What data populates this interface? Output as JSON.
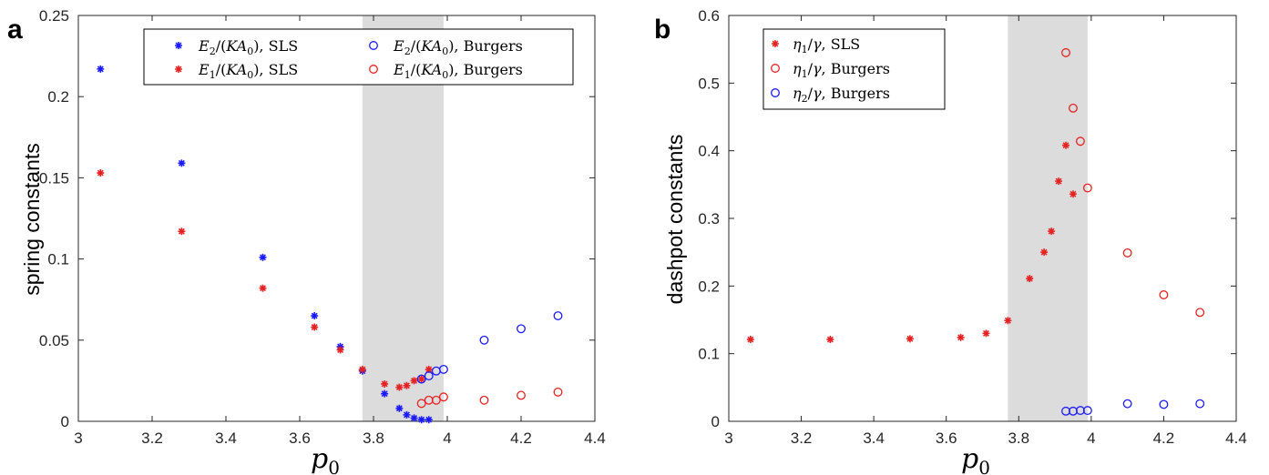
{
  "colors": {
    "blue": "#1a1aff",
    "red": "#e52222",
    "shade": "#dcdcdc"
  },
  "panels": [
    {
      "letter": "a"
    },
    {
      "letter": "b"
    }
  ],
  "chart_data": [
    {
      "type": "scatter",
      "title": "",
      "xlabel": "p0",
      "ylabel": "spring constants",
      "xlim": [
        3,
        4.4
      ],
      "ylim": [
        0,
        0.25
      ],
      "xticks": [
        "3",
        "3.2",
        "3.4",
        "3.6",
        "3.8",
        "4",
        "4.2",
        "4.4"
      ],
      "yticks": [
        "0",
        "0.05",
        "0.1",
        "0.15",
        "0.2",
        "0.25"
      ],
      "xtick_values": [
        3,
        3.2,
        3.4,
        3.6,
        3.8,
        4,
        4.2,
        4.4
      ],
      "ytick_values": [
        0,
        0.05,
        0.1,
        0.15,
        0.2,
        0.25
      ],
      "shaded_x_range": [
        3.77,
        3.99
      ],
      "legend_placement": "top",
      "legend_columns": 2,
      "grid": false,
      "series": [
        {
          "name": "E2/(KA0), SLS",
          "color": "blue",
          "marker": "asterisk",
          "x": [
            3.06,
            3.28,
            3.5,
            3.64,
            3.71,
            3.77,
            3.83,
            3.87,
            3.89,
            3.91,
            3.93,
            3.95
          ],
          "y": [
            0.217,
            0.159,
            0.101,
            0.065,
            0.046,
            0.031,
            0.017,
            0.008,
            0.004,
            0.002,
            0.001,
            0.001
          ]
        },
        {
          "name": "E1/(KA0), SLS",
          "color": "red",
          "marker": "asterisk",
          "x": [
            3.06,
            3.28,
            3.5,
            3.64,
            3.71,
            3.77,
            3.83,
            3.87,
            3.89,
            3.91,
            3.93,
            3.95
          ],
          "y": [
            0.153,
            0.117,
            0.082,
            0.058,
            0.044,
            0.032,
            0.023,
            0.021,
            0.022,
            0.025,
            0.026,
            0.032
          ]
        },
        {
          "name": "E2/(KA0), Burgers",
          "color": "blue",
          "marker": "circle",
          "x": [
            3.93,
            3.95,
            3.97,
            3.99,
            4.1,
            4.2,
            4.3
          ],
          "y": [
            0.026,
            0.028,
            0.031,
            0.032,
            0.05,
            0.057,
            0.065
          ]
        },
        {
          "name": "E1/(KA0), Burgers",
          "color": "red",
          "marker": "circle",
          "x": [
            3.93,
            3.95,
            3.97,
            3.99,
            4.1,
            4.2,
            4.3
          ],
          "y": [
            0.011,
            0.013,
            0.013,
            0.015,
            0.013,
            0.016,
            0.018
          ]
        }
      ]
    },
    {
      "type": "scatter",
      "title": "",
      "xlabel": "p0",
      "ylabel": "dashpot constants",
      "xlim": [
        3,
        4.4
      ],
      "ylim": [
        0,
        0.6
      ],
      "xticks": [
        "3",
        "3.2",
        "3.4",
        "3.6",
        "3.8",
        "4",
        "4.2",
        "4.4"
      ],
      "yticks": [
        "0",
        "0.1",
        "0.2",
        "0.3",
        "0.4",
        "0.5",
        "0.6"
      ],
      "xtick_values": [
        3,
        3.2,
        3.4,
        3.6,
        3.8,
        4,
        4.2,
        4.4
      ],
      "ytick_values": [
        0,
        0.1,
        0.2,
        0.3,
        0.4,
        0.5,
        0.6
      ],
      "shaded_x_range": [
        3.77,
        3.99
      ],
      "legend_placement": "top-left",
      "legend_columns": 1,
      "grid": false,
      "series": [
        {
          "name": "η1/γ, SLS",
          "color": "red",
          "marker": "asterisk",
          "x": [
            3.06,
            3.28,
            3.5,
            3.64,
            3.71,
            3.77,
            3.83,
            3.87,
            3.89,
            3.91,
            3.93,
            3.95
          ],
          "y": [
            0.121,
            0.121,
            0.122,
            0.124,
            0.13,
            0.149,
            0.211,
            0.25,
            0.281,
            0.355,
            0.408,
            0.336
          ]
        },
        {
          "name": "η1/γ, Burgers",
          "color": "red",
          "marker": "circle",
          "x": [
            3.93,
            3.95,
            3.97,
            3.99,
            4.1,
            4.2,
            4.3
          ],
          "y": [
            0.545,
            0.463,
            0.414,
            0.345,
            0.249,
            0.187,
            0.161
          ]
        },
        {
          "name": "η2/γ, Burgers",
          "color": "blue",
          "marker": "circle",
          "x": [
            3.93,
            3.95,
            3.97,
            3.99,
            4.1,
            4.2,
            4.3
          ],
          "y": [
            0.015,
            0.015,
            0.016,
            0.016,
            0.026,
            0.025,
            0.026
          ]
        }
      ]
    }
  ]
}
